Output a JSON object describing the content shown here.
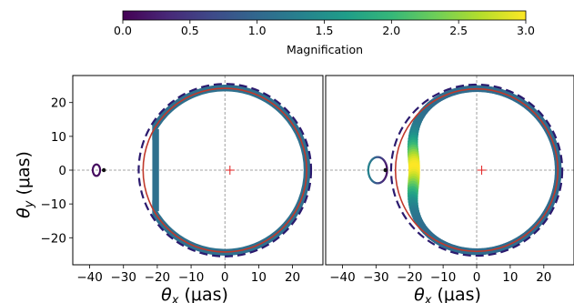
{
  "colorbar": {
    "label": "Magnification",
    "ticks": [
      "0.0",
      "0.5",
      "1.0",
      "1.5",
      "2.0",
      "2.5",
      "3.0"
    ],
    "range": [
      0,
      3
    ],
    "colormap": "viridis",
    "stops": [
      "#440154",
      "#482878",
      "#3e4a89",
      "#31688e",
      "#26828e",
      "#1f9e89",
      "#35b779",
      "#6ece58",
      "#b5de2b",
      "#fde725"
    ]
  },
  "chart_data": [
    {
      "type": "scatter",
      "panel": "left",
      "xlabel": "θ_x (μas)",
      "ylabel": "θ_y (μas)",
      "xlim": [
        -45,
        29
      ],
      "ylim": [
        -28,
        28
      ],
      "xticks": [
        "−40",
        "−30",
        "−20",
        "−10",
        "0",
        "10",
        "20"
      ],
      "xtick_values": [
        -40,
        -30,
        -20,
        -10,
        0,
        10,
        20
      ],
      "yticks": [
        "20",
        "10",
        "0",
        "−10",
        "−20"
      ],
      "ytick_values": [
        20,
        10,
        0,
        -10,
        -20
      ],
      "dashed_circle": {
        "center": [
          0,
          0
        ],
        "radius": 25.5,
        "color": "#2b1a6e"
      },
      "red_circle": {
        "center": [
          0,
          0
        ],
        "radius": 24.2,
        "color": "#c0392b"
      },
      "primary_image": {
        "outer_radius": 25.3,
        "inner_radius": 23.3,
        "clip_x_min": -21.5,
        "magnification": 1.1
      },
      "secondary_image": {
        "center": [
          -38,
          0
        ],
        "rx": 1.1,
        "ry": 1.7,
        "magnification": 0.1
      },
      "source_dot": [
        -35.8,
        0
      ],
      "marker": [
        1.5,
        0
      ]
    },
    {
      "type": "scatter",
      "panel": "right",
      "xlabel": "θ_x (μas)",
      "xlim": [
        -45,
        29
      ],
      "ylim": [
        -28,
        28
      ],
      "xticks": [
        "−40",
        "−30",
        "−20",
        "−10",
        "0",
        "10",
        "20"
      ],
      "xtick_values": [
        -40,
        -30,
        -20,
        -10,
        0,
        10,
        20
      ],
      "dashed_circle": {
        "center": [
          0,
          0
        ],
        "radius": 25.5,
        "color": "#2b1a6e"
      },
      "red_circle": {
        "center": [
          0,
          0
        ],
        "radius": 24.2,
        "color": "#c0392b"
      },
      "primary_image": {
        "outer_radius": 25.3,
        "inner_radius": 23.3,
        "dent_x": -18,
        "magnification_range": [
          1.0,
          3.0
        ]
      },
      "secondary_image": {
        "center": [
          -29.5,
          0
        ],
        "rx": 2.8,
        "ry": 3.9,
        "magnification_range": [
          0.1,
          1.5
        ]
      },
      "source_dot": [
        -27.2,
        0
      ],
      "marker": [
        1.5,
        0
      ]
    }
  ]
}
